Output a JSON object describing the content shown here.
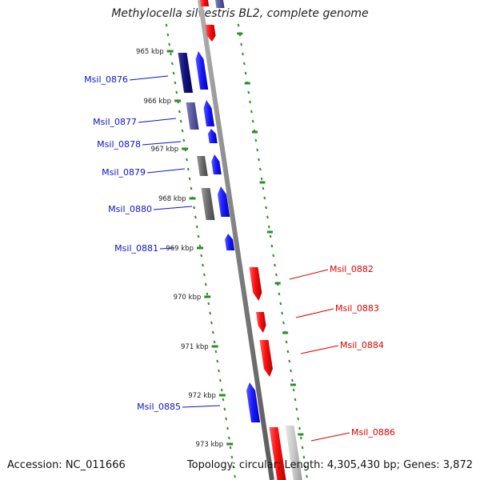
{
  "title": "Methylocella silvestris BL2, complete genome",
  "footer": {
    "accession": "Accession: NC_011666",
    "summary": "Topology: circular; Length: 4,305,430 bp; Genes: 3,872"
  },
  "colors": {
    "backbone": "#8a8a8a",
    "ruler": "#2e8b2e",
    "forward_label": "#1010cc",
    "reverse_label": "#dd0000"
  },
  "ruler_labels": [
    "965 kbp",
    "966 kbp",
    "967 kbp",
    "968 kbp",
    "969 kbp",
    "970 kbp",
    "971 kbp",
    "972 kbp",
    "973 kbp"
  ],
  "genes": [
    {
      "name": "Msil_0876",
      "strand": "+"
    },
    {
      "name": "Msil_0877",
      "strand": "+"
    },
    {
      "name": "Msil_0878",
      "strand": "+"
    },
    {
      "name": "Msil_0879",
      "strand": "+"
    },
    {
      "name": "Msil_0880",
      "strand": "+"
    },
    {
      "name": "Msil_0881",
      "strand": "+"
    },
    {
      "name": "Msil_0882",
      "strand": "-"
    },
    {
      "name": "Msil_0883",
      "strand": "-"
    },
    {
      "name": "Msil_0884",
      "strand": "-"
    },
    {
      "name": "Msil_0885",
      "strand": "+"
    },
    {
      "name": "Msil_0886",
      "strand": "-"
    }
  ]
}
